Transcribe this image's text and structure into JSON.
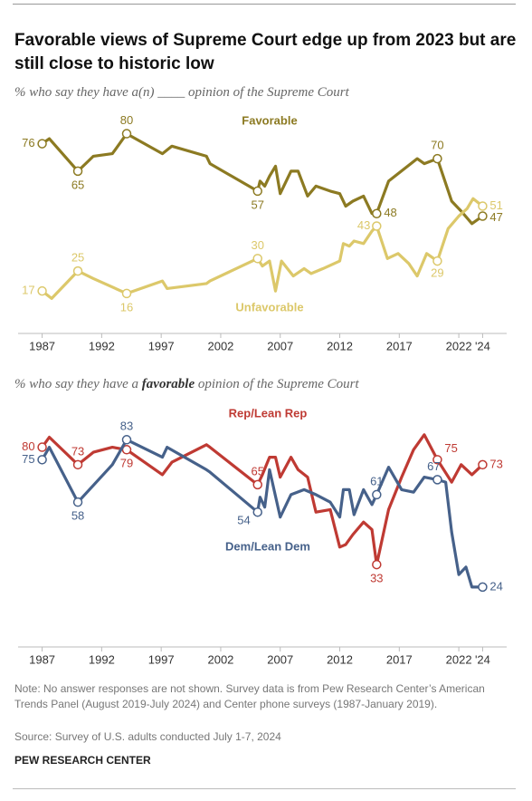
{
  "title": "Favorable views of Supreme Court edge up from 2023 but are still close to historic low",
  "chart_data": [
    {
      "type": "line",
      "subtitle": [
        "% who say they have a(n) ____ opinion of the Supreme Court"
      ],
      "xlim": [
        1986.5,
        2024.5
      ],
      "xticks": [
        1987,
        1992,
        1997,
        2002,
        2007,
        2012,
        2017,
        2022,
        {
          "value": 2024,
          "label": "'24"
        }
      ],
      "ylim": [
        0,
        90
      ],
      "series": [
        {
          "name": "Favorable",
          "color": "#8c7a22",
          "x": [
            1987,
            1987.6,
            1990,
            1991.3,
            1992.9,
            1994.1,
            1997.1,
            1997.9,
            2000.8,
            2001.1,
            2005.1,
            2005.3,
            2005.7,
            2006.1,
            2006.6,
            2007,
            2007.9,
            2008.5,
            2009.3,
            2010,
            2011.2,
            2012,
            2012.5,
            2013.1,
            2014,
            2014.7,
            2015.1,
            2016.1,
            2018.5,
            2019.1,
            2020.2,
            2021.4,
            2022.2,
            2023.1,
            2024
          ],
          "values": [
            76,
            78,
            65,
            71,
            72,
            80,
            72,
            75,
            71,
            68,
            57,
            61,
            59,
            63,
            67,
            56,
            65,
            65,
            55,
            59,
            57,
            56,
            51,
            53,
            55,
            48,
            48,
            61,
            70,
            68,
            70,
            53,
            49,
            44,
            47
          ]
        },
        {
          "name": "Unfavorable",
          "color": "#dcc86a",
          "x": [
            1987,
            1987.8,
            1990,
            1991.3,
            1994.1,
            1997.1,
            1997.5,
            2000.8,
            2001.1,
            2005.1,
            2005.5,
            2006.1,
            2006.6,
            2007.1,
            2008.1,
            2009,
            2009.6,
            2010.6,
            2012,
            2012.3,
            2012.8,
            2013.2,
            2014,
            2014.7,
            2015.1,
            2016,
            2016.9,
            2017.8,
            2018.5,
            2019.3,
            2020.2,
            2021.1,
            2022,
            2022.7,
            2023.2,
            2024
          ],
          "values": [
            17,
            14,
            25,
            22,
            16,
            21,
            18,
            20,
            21,
            30,
            27,
            29,
            17,
            29,
            23,
            26,
            24,
            26,
            29,
            36,
            35,
            37,
            36,
            41,
            43,
            30,
            32,
            28,
            23,
            32,
            29,
            42,
            47,
            50,
            54,
            51
          ]
        }
      ]
    },
    {
      "type": "line",
      "subtitle": [
        "% who say they have a ",
        "favorable",
        " opinion of the Supreme Court"
      ],
      "xlim": [
        1986.5,
        2024.5
      ],
      "xticks": [
        1987,
        1992,
        1997,
        2002,
        2007,
        2012,
        2017,
        2022,
        {
          "value": 2024,
          "label": "'24"
        }
      ],
      "ylim": [
        0,
        90
      ],
      "series": [
        {
          "name": "Rep/Lean Rep",
          "color": "#bf3a33",
          "x": [
            1987,
            1987.6,
            1990,
            1991.3,
            1992.9,
            1994.1,
            1997.1,
            1997.9,
            2000.8,
            2001.1,
            2005.1,
            2005.5,
            2006.1,
            2006.6,
            2007,
            2007.9,
            2008.5,
            2009.3,
            2010,
            2011.2,
            2012,
            2012.5,
            2013.1,
            2014,
            2014.7,
            2015.1,
            2016.1,
            2017.2,
            2018.2,
            2019.1,
            2020.2,
            2021.4,
            2022.2,
            2023.1,
            2024
          ],
          "values": [
            80,
            84,
            73,
            78,
            80,
            79,
            69,
            74,
            81,
            80,
            65,
            69,
            76,
            76,
            68,
            76,
            71,
            68,
            54,
            55,
            40,
            41,
            45,
            50,
            47,
            33,
            55,
            68,
            79,
            85,
            75,
            66,
            73,
            69,
            73
          ]
        },
        {
          "name": "Dem/Lean Dem",
          "color": "#46618a",
          "x": [
            1987,
            1987.6,
            1990,
            1992.9,
            1994.1,
            1997.1,
            1997.5,
            2000.8,
            2001.1,
            2005.1,
            2005.3,
            2005.7,
            2006.1,
            2007,
            2007.9,
            2009,
            2010,
            2011.2,
            2012,
            2012.3,
            2012.8,
            2013.2,
            2014,
            2014.7,
            2015.1,
            2016.1,
            2017.2,
            2018.2,
            2019.1,
            2020.2,
            2020.9,
            2021.4,
            2022,
            2022.6,
            2023.1,
            2024
          ],
          "values": [
            75,
            80,
            58,
            73,
            83,
            76,
            80,
            71,
            70,
            54,
            60,
            56,
            71,
            52,
            61,
            63,
            61,
            58,
            52,
            63,
            63,
            53,
            63,
            57,
            61,
            72,
            63,
            62,
            68,
            67,
            66,
            46,
            29,
            32,
            24,
            24
          ]
        }
      ]
    }
  ],
  "note": "Note: No answer responses are not shown. Survey data is from Pew Research Center’s American Trends Panel (August 2019-July 2024) and Center phone surveys (1987-January 2019).",
  "source": "Source: Survey of U.S. adults conducted July 1-7, 2024",
  "footer": "PEW RESEARCH CENTER"
}
